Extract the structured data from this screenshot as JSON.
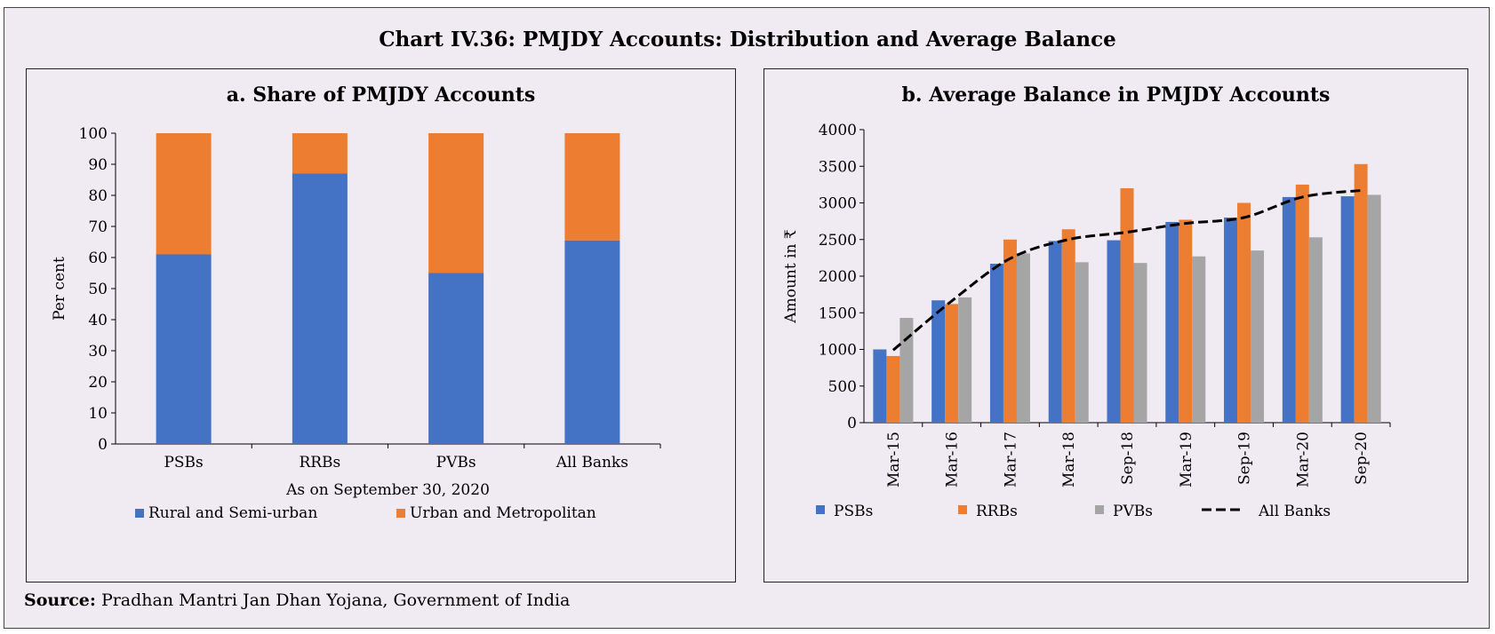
{
  "title": "Chart IV.36: PMJDY Accounts: Distribution and Average Balance",
  "source_label": "Source:",
  "source_text": "Pradhan Mantri Jan Dhan Yojana, Government of India",
  "colors": {
    "blue": "#4472c4",
    "orange": "#ed7d31",
    "gray": "#a5a5a5",
    "line": "#000000",
    "background": "#f0ebf3"
  },
  "chart_data": [
    {
      "type": "bar",
      "stacked": true,
      "title": "a. Share of PMJDY Accounts",
      "xlabel": "As on September 30, 2020",
      "ylabel": "Per cent",
      "ylim": [
        0,
        100
      ],
      "yticks": [
        0,
        10,
        20,
        30,
        40,
        50,
        60,
        70,
        80,
        90,
        100
      ],
      "categories": [
        "PSBs",
        "RRBs",
        "PVBs",
        "All Banks"
      ],
      "series": [
        {
          "name": "Rural and Semi-urban",
          "color": "#4472c4",
          "values": [
            61,
            87,
            55,
            65.5
          ]
        },
        {
          "name": "Urban and Metropolitan",
          "color": "#ed7d31",
          "values": [
            39,
            13,
            45,
            34.5
          ]
        }
      ],
      "legend": "bottom",
      "grid": false
    },
    {
      "type": "bar",
      "title": "b. Average Balance in PMJDY Accounts",
      "xlabel": "",
      "ylabel": "Amount in ₹",
      "ylim": [
        0,
        4000
      ],
      "yticks": [
        0,
        500,
        1000,
        1500,
        2000,
        2500,
        3000,
        3500,
        4000
      ],
      "categories": [
        "Mar-15",
        "Mar-16",
        "Mar-17",
        "Mar-18",
        "Sep-18",
        "Mar-19",
        "Sep-19",
        "Mar-20",
        "Sep-20"
      ],
      "series": [
        {
          "name": "PSBs",
          "type": "bar",
          "color": "#4472c4",
          "values": [
            1000,
            1670,
            2170,
            2480,
            2490,
            2740,
            2800,
            3080,
            3090
          ]
        },
        {
          "name": "RRBs",
          "type": "bar",
          "color": "#ed7d31",
          "values": [
            910,
            1620,
            2500,
            2640,
            3200,
            2770,
            3000,
            3250,
            3530
          ]
        },
        {
          "name": "PVBs",
          "type": "bar",
          "color": "#a5a5a5",
          "values": [
            1430,
            1710,
            2310,
            2190,
            2180,
            2270,
            2350,
            2530,
            3110
          ]
        },
        {
          "name": "All Banks",
          "type": "line",
          "style": "dashed",
          "color": "#000000",
          "values": [
            990,
            1660,
            2240,
            2500,
            2600,
            2720,
            2800,
            3080,
            3170
          ]
        }
      ],
      "legend": "bottom",
      "grid": false
    }
  ]
}
